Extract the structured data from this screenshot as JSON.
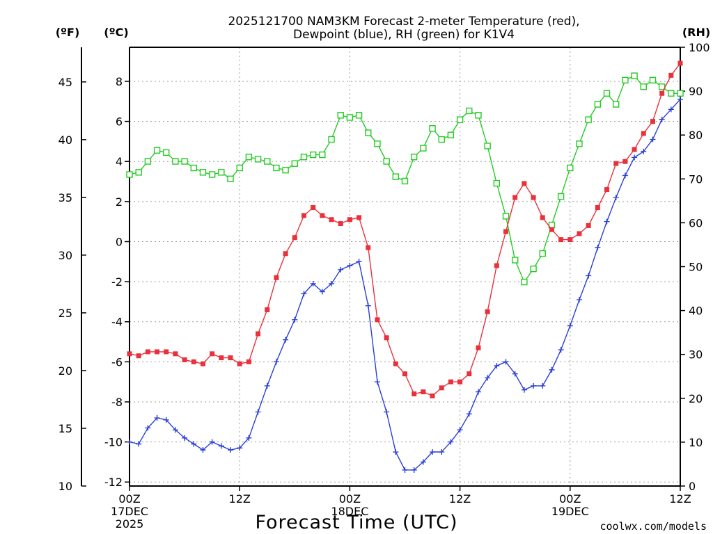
{
  "chart_data": {
    "type": "line",
    "title": [
      "2025121700 NAM3KM Forecast 2-meter Temperature (red),",
      "Dewpoint (blue), RH (green) for K1V4"
    ],
    "xlabel": "Forecast Time (UTC)",
    "watermark": "coolwx.com/models",
    "units": {
      "left_outer": "(ºF)",
      "left_inner": "(ºC)",
      "right": "(RH)"
    },
    "x_range_hours": [
      0,
      60
    ],
    "x_ticks": [
      {
        "hour": 0,
        "label": "00Z",
        "sub": [
          "17DEC",
          "2025"
        ]
      },
      {
        "hour": 12,
        "label": "12Z",
        "sub": []
      },
      {
        "hour": 24,
        "label": "00Z",
        "sub": [
          "18DEC"
        ]
      },
      {
        "hour": 36,
        "label": "12Z",
        "sub": []
      },
      {
        "hour": 48,
        "label": "00Z",
        "sub": [
          "19DEC"
        ]
      },
      {
        "hour": 60,
        "label": "12Z",
        "sub": []
      }
    ],
    "celsius_axis": {
      "range": [
        -12.2,
        9.7
      ],
      "ticks": [
        -12,
        -10,
        -8,
        -6,
        -4,
        -2,
        0,
        2,
        4,
        6,
        8
      ]
    },
    "fahrenheit_axis": {
      "range": [
        10,
        48
      ],
      "ticks": [
        10,
        15,
        20,
        25,
        30,
        35,
        40,
        45
      ]
    },
    "rh_axis": {
      "range": [
        0,
        100
      ],
      "ticks": [
        0,
        10,
        20,
        30,
        40,
        50,
        60,
        70,
        80,
        90,
        100
      ]
    },
    "colors": {
      "temperature": "#e8313a",
      "dewpoint": "#2a3fd6",
      "rh": "#22cc22",
      "grid": "#9a9a9a",
      "watermark": "#d6243a"
    },
    "series": [
      {
        "name": "2-meter Temperature",
        "unit": "C",
        "values": [
          -5.6,
          -5.7,
          -5.5,
          -5.5,
          -5.5,
          -5.6,
          -5.9,
          -6.0,
          -6.1,
          -5.6,
          -5.8,
          -5.8,
          -6.1,
          -6.0,
          -4.6,
          -3.4,
          -1.8,
          -0.6,
          0.2,
          1.3,
          1.7,
          1.3,
          1.1,
          0.9,
          1.1,
          1.2,
          -0.3,
          -3.9,
          -4.8,
          -6.1,
          -6.6,
          -7.6,
          -7.5,
          -7.7,
          -7.3,
          -7.0,
          -7.0,
          -6.6,
          -5.3,
          -3.5,
          -1.2,
          0.5,
          2.2,
          2.9,
          2.2,
          1.2,
          0.6,
          0.1,
          0.1,
          0.4,
          0.8,
          1.7,
          2.6,
          3.9,
          4.0,
          4.6,
          5.4,
          6.0,
          7.4,
          8.3,
          8.9
        ]
      },
      {
        "name": "Dewpoint",
        "unit": "C",
        "values": [
          -10.0,
          -10.1,
          -9.3,
          -8.8,
          -8.9,
          -9.4,
          -9.8,
          -10.1,
          -10.4,
          -10.0,
          -10.2,
          -10.4,
          -10.3,
          -9.8,
          -8.5,
          -7.2,
          -6.0,
          -4.9,
          -3.9,
          -2.6,
          -2.1,
          -2.5,
          -2.1,
          -1.4,
          -1.2,
          -1.0,
          -3.2,
          -7.0,
          -8.5,
          -10.5,
          -11.4,
          -11.4,
          -11.0,
          -10.5,
          -10.5,
          -10.0,
          -9.4,
          -8.6,
          -7.5,
          -6.8,
          -6.2,
          -6.0,
          -6.6,
          -7.4,
          -7.2,
          -7.2,
          -6.4,
          -5.4,
          -4.2,
          -2.9,
          -1.7,
          -0.3,
          1.0,
          2.2,
          3.3,
          4.2,
          4.5,
          5.1,
          6.1,
          6.6,
          7.1
        ]
      },
      {
        "name": "RH",
        "unit": "%",
        "values": [
          71,
          71.5,
          74,
          76.5,
          76,
          74,
          74,
          72.5,
          71.5,
          71,
          71.5,
          70,
          72.5,
          75,
          74.5,
          74,
          72.5,
          72,
          73.5,
          75,
          75.5,
          75.5,
          79,
          84.5,
          84,
          84.5,
          80.5,
          78,
          74,
          70.5,
          69.5,
          75,
          77,
          81.5,
          79,
          80,
          83.5,
          85.5,
          84.5,
          77.5,
          69,
          61.5,
          51.5,
          46.5,
          49.5,
          53,
          59.5,
          66,
          72.5,
          78,
          83.5,
          87,
          89.5,
          87,
          92.5,
          93.5,
          91,
          92.5,
          91,
          89.5,
          89.5
        ]
      }
    ]
  }
}
